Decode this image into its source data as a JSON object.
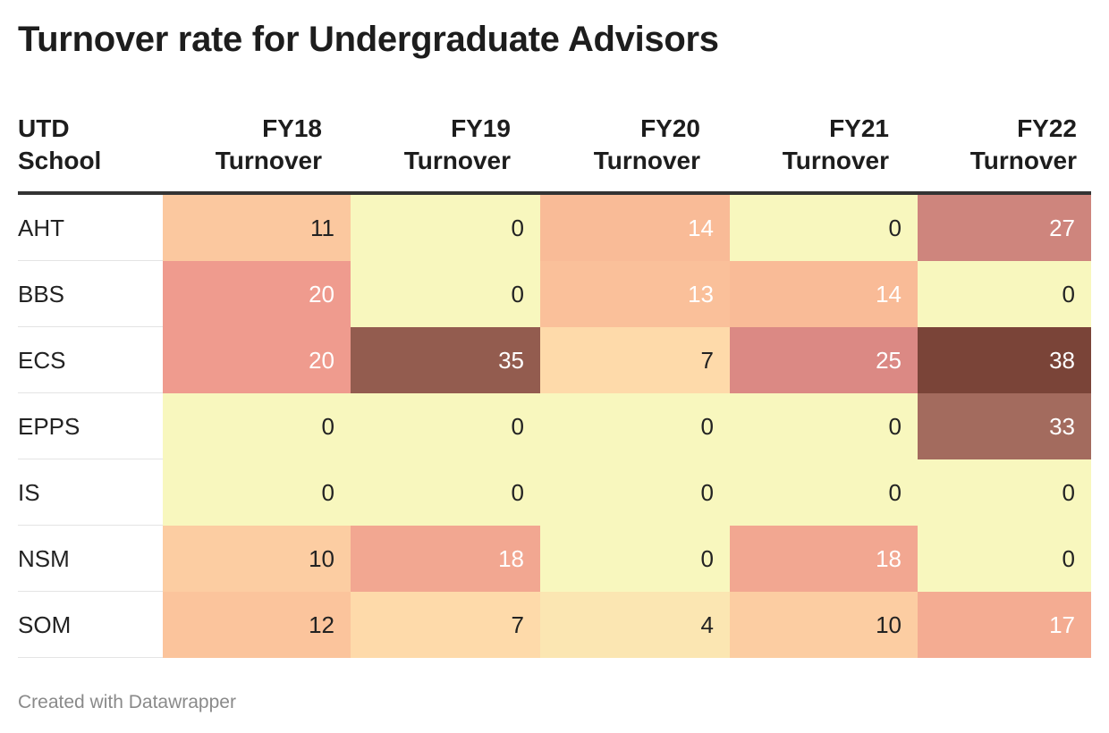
{
  "title": "Turnover rate for Undergraduate Advisors",
  "footer": "Created with Datawrapper",
  "headers": [
    {
      "line1": "UTD",
      "line2": "School"
    },
    {
      "line1": "FY18",
      "line2": "Turnover"
    },
    {
      "line1": "FY19",
      "line2": "Turnover"
    },
    {
      "line1": "FY20",
      "line2": "Turnover"
    },
    {
      "line1": "FY21",
      "line2": "Turnover"
    },
    {
      "line1": "FY22",
      "line2": "Turnover"
    }
  ],
  "chart_data": {
    "type": "heatmap",
    "title": "Turnover rate for Undergraduate Advisors",
    "row_header": "UTD School",
    "columns": [
      "FY18 Turnover",
      "FY19 Turnover",
      "FY20 Turnover",
      "FY21 Turnover",
      "FY22 Turnover"
    ],
    "rows": [
      {
        "label": "AHT",
        "values": [
          11,
          0,
          14,
          0,
          27
        ]
      },
      {
        "label": "BBS",
        "values": [
          20,
          0,
          13,
          14,
          0
        ]
      },
      {
        "label": "ECS",
        "values": [
          20,
          35,
          7,
          25,
          38
        ]
      },
      {
        "label": "EPPS",
        "values": [
          0,
          0,
          0,
          0,
          33
        ]
      },
      {
        "label": "IS",
        "values": [
          0,
          0,
          0,
          0,
          0
        ]
      },
      {
        "label": "NSM",
        "values": [
          10,
          18,
          0,
          18,
          0
        ]
      },
      {
        "label": "SOM",
        "values": [
          12,
          7,
          4,
          10,
          17
        ]
      }
    ],
    "color_scale": {
      "min": 0,
      "max": 38,
      "stops": [
        "#f8f7be",
        "#fed7a8",
        "#f8b694",
        "#e98c8b",
        "#b98072",
        "#7a4438"
      ]
    }
  }
}
